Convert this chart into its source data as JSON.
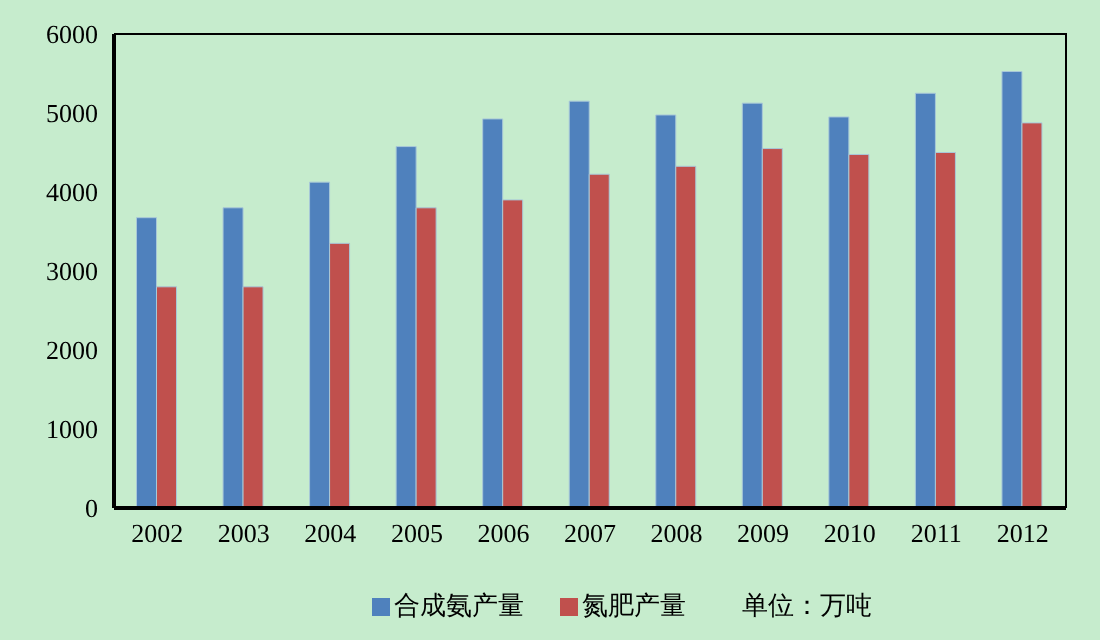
{
  "chart_data": {
    "type": "bar",
    "categories": [
      "2002",
      "2003",
      "2004",
      "2005",
      "2006",
      "2007",
      "2008",
      "2009",
      "2010",
      "2011",
      "2012"
    ],
    "series": [
      {
        "name": "合成氨产量",
        "color": "#4f81bd",
        "values": [
          3675,
          3800,
          4125,
          4575,
          4925,
          5150,
          4975,
          5125,
          4950,
          5250,
          5525
        ]
      },
      {
        "name": "氮肥产量",
        "color": "#c0504d",
        "values": [
          2800,
          2800,
          3350,
          3800,
          3900,
          4225,
          4325,
          4550,
          4475,
          4500,
          4875
        ]
      }
    ],
    "ylim": [
      0,
      6000
    ],
    "yticks": [
      0,
      1000,
      2000,
      3000,
      4000,
      5000,
      6000
    ],
    "grid": false,
    "legend": "bottom",
    "annotations": [
      "单位：万吨"
    ]
  }
}
